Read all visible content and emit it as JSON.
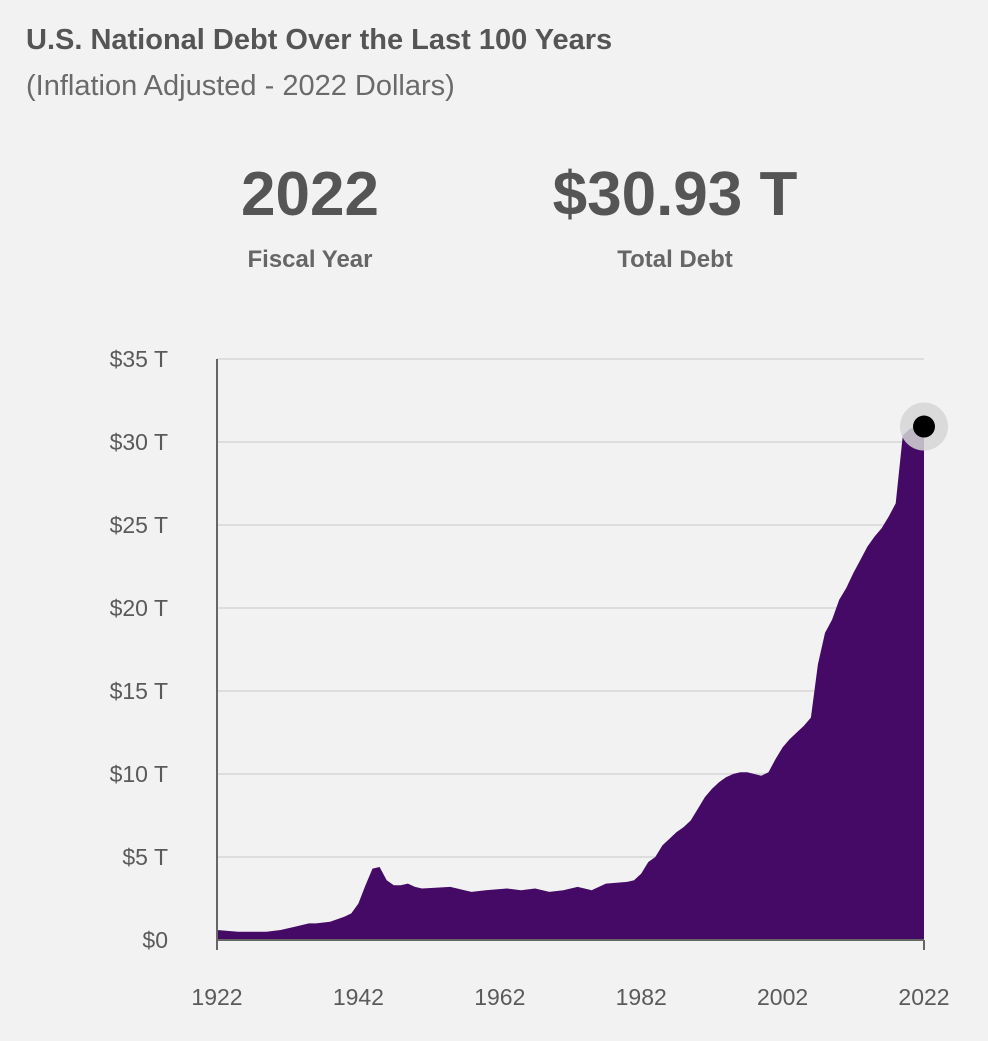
{
  "header": {
    "title": "U.S. National Debt Over the Last 100 Years",
    "subtitle": "(Inflation Adjusted - 2022 Dollars)"
  },
  "stats": {
    "year_value": "2022",
    "year_label": "Fiscal Year",
    "debt_value": "$30.93 T",
    "debt_label": "Total Debt"
  },
  "colors": {
    "area": "#440a65",
    "grid": "#dddddd",
    "marker": "#000000",
    "halo": "#d6d6d6"
  },
  "chart_data": {
    "type": "area",
    "title": "U.S. National Debt Over the Last 100 Years",
    "subtitle": "(Inflation Adjusted - 2022 Dollars)",
    "xlabel": "",
    "ylabel": "",
    "xlim": [
      1922,
      2022
    ],
    "ylim": [
      0,
      35
    ],
    "grid": true,
    "x_ticks": [
      1922,
      1942,
      1962,
      1982,
      2002,
      2022
    ],
    "x_tick_labels": [
      "1922",
      "1942",
      "1962",
      "1982",
      "2002",
      "2022"
    ],
    "y_ticks": [
      0,
      5,
      10,
      15,
      20,
      25,
      30,
      35
    ],
    "y_tick_labels": [
      "$0",
      "$5 T",
      "$10 T",
      "$15 T",
      "$20 T",
      "$25 T",
      "$30 T",
      "$35 T"
    ],
    "highlight": {
      "x": 2022,
      "y": 30.93
    },
    "series": [
      {
        "x": [
          1922,
          1925,
          1929,
          1931,
          1933,
          1935,
          1936,
          1938,
          1940,
          1941,
          1942,
          1943,
          1944,
          1945,
          1946,
          1947,
          1948,
          1949,
          1950,
          1951,
          1955,
          1957,
          1958,
          1960,
          1963,
          1965,
          1967,
          1969,
          1971,
          1973,
          1975,
          1977,
          1980,
          1981,
          1982,
          1983,
          1984,
          1985,
          1986,
          1987,
          1988,
          1989,
          1990,
          1991,
          1992,
          1993,
          1994,
          1995,
          1996,
          1997,
          1998,
          1999,
          2000,
          2001,
          2002,
          2003,
          2004,
          2005,
          2006,
          2007,
          2008,
          2009,
          2010,
          2011,
          2012,
          2013,
          2014,
          2015,
          2016,
          2017,
          2018,
          2019,
          2020,
          2021,
          2022
        ],
        "y": [
          0.6,
          0.5,
          0.5,
          0.6,
          0.8,
          1.0,
          1.0,
          1.1,
          1.4,
          1.6,
          2.2,
          3.3,
          4.3,
          4.4,
          3.6,
          3.3,
          3.3,
          3.4,
          3.2,
          3.1,
          3.2,
          3.0,
          2.9,
          3.0,
          3.1,
          3.0,
          3.1,
          2.9,
          3.0,
          3.2,
          3.0,
          3.4,
          3.5,
          3.6,
          4.0,
          4.7,
          5.0,
          5.7,
          6.1,
          6.5,
          6.8,
          7.2,
          7.9,
          8.6,
          9.1,
          9.5,
          9.8,
          10.0,
          10.1,
          10.1,
          10.0,
          9.9,
          10.1,
          10.9,
          11.6,
          12.1,
          12.5,
          12.9,
          13.4,
          16.6,
          18.5,
          19.3,
          20.5,
          21.2,
          22.1,
          22.9,
          23.7,
          24.3,
          24.8,
          25.5,
          26.3,
          30.4,
          30.8,
          30.93,
          30.93
        ]
      }
    ]
  }
}
